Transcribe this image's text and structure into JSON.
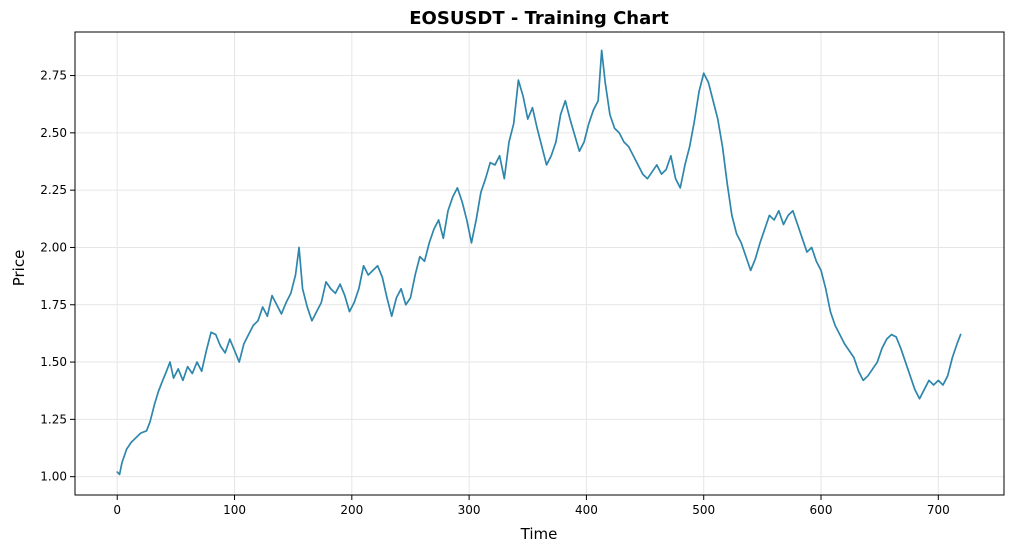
{
  "chart_data": {
    "type": "line",
    "title": "EOSUSDT - Training Chart",
    "xlabel": "Time",
    "ylabel": "Price",
    "xlim": [
      -36,
      756
    ],
    "ylim": [
      0.92,
      2.94
    ],
    "xticks": [
      0,
      100,
      200,
      300,
      400,
      500,
      600,
      700
    ],
    "yticks": [
      1.0,
      1.25,
      1.5,
      1.75,
      2.0,
      2.25,
      2.5,
      2.75
    ],
    "grid": true,
    "legend": "none",
    "line_color": "#2e86ab",
    "series": [
      {
        "points": [
          [
            0,
            1.02
          ],
          [
            2,
            1.01
          ],
          [
            4,
            1.06
          ],
          [
            8,
            1.12
          ],
          [
            12,
            1.15
          ],
          [
            16,
            1.17
          ],
          [
            20,
            1.19
          ],
          [
            25,
            1.2
          ],
          [
            28,
            1.24
          ],
          [
            32,
            1.32
          ],
          [
            35,
            1.37
          ],
          [
            38,
            1.41
          ],
          [
            42,
            1.46
          ],
          [
            45,
            1.5
          ],
          [
            48,
            1.43
          ],
          [
            52,
            1.47
          ],
          [
            56,
            1.42
          ],
          [
            60,
            1.48
          ],
          [
            64,
            1.45
          ],
          [
            68,
            1.5
          ],
          [
            72,
            1.46
          ],
          [
            76,
            1.55
          ],
          [
            80,
            1.63
          ],
          [
            84,
            1.62
          ],
          [
            88,
            1.57
          ],
          [
            92,
            1.54
          ],
          [
            96,
            1.6
          ],
          [
            100,
            1.55
          ],
          [
            104,
            1.5
          ],
          [
            108,
            1.58
          ],
          [
            112,
            1.62
          ],
          [
            116,
            1.66
          ],
          [
            120,
            1.68
          ],
          [
            124,
            1.74
          ],
          [
            128,
            1.7
          ],
          [
            132,
            1.79
          ],
          [
            136,
            1.75
          ],
          [
            140,
            1.71
          ],
          [
            144,
            1.76
          ],
          [
            148,
            1.8
          ],
          [
            152,
            1.88
          ],
          [
            155,
            2.0
          ],
          [
            158,
            1.82
          ],
          [
            162,
            1.74
          ],
          [
            166,
            1.68
          ],
          [
            170,
            1.72
          ],
          [
            174,
            1.76
          ],
          [
            178,
            1.85
          ],
          [
            182,
            1.82
          ],
          [
            186,
            1.8
          ],
          [
            190,
            1.84
          ],
          [
            194,
            1.79
          ],
          [
            198,
            1.72
          ],
          [
            202,
            1.76
          ],
          [
            206,
            1.82
          ],
          [
            210,
            1.92
          ],
          [
            214,
            1.88
          ],
          [
            218,
            1.9
          ],
          [
            222,
            1.92
          ],
          [
            226,
            1.87
          ],
          [
            230,
            1.78
          ],
          [
            234,
            1.7
          ],
          [
            238,
            1.78
          ],
          [
            242,
            1.82
          ],
          [
            246,
            1.75
          ],
          [
            250,
            1.78
          ],
          [
            254,
            1.88
          ],
          [
            258,
            1.96
          ],
          [
            262,
            1.94
          ],
          [
            266,
            2.02
          ],
          [
            270,
            2.08
          ],
          [
            274,
            2.12
          ],
          [
            278,
            2.04
          ],
          [
            282,
            2.16
          ],
          [
            286,
            2.22
          ],
          [
            290,
            2.26
          ],
          [
            294,
            2.2
          ],
          [
            298,
            2.12
          ],
          [
            302,
            2.02
          ],
          [
            306,
            2.12
          ],
          [
            310,
            2.24
          ],
          [
            314,
            2.3
          ],
          [
            318,
            2.37
          ],
          [
            322,
            2.36
          ],
          [
            326,
            2.4
          ],
          [
            330,
            2.3
          ],
          [
            334,
            2.46
          ],
          [
            338,
            2.54
          ],
          [
            342,
            2.73
          ],
          [
            346,
            2.66
          ],
          [
            350,
            2.56
          ],
          [
            354,
            2.61
          ],
          [
            358,
            2.52
          ],
          [
            362,
            2.44
          ],
          [
            366,
            2.36
          ],
          [
            370,
            2.4
          ],
          [
            374,
            2.46
          ],
          [
            378,
            2.58
          ],
          [
            382,
            2.64
          ],
          [
            386,
            2.56
          ],
          [
            390,
            2.49
          ],
          [
            394,
            2.42
          ],
          [
            398,
            2.46
          ],
          [
            402,
            2.54
          ],
          [
            406,
            2.6
          ],
          [
            410,
            2.64
          ],
          [
            413,
            2.86
          ],
          [
            416,
            2.72
          ],
          [
            420,
            2.58
          ],
          [
            424,
            2.52
          ],
          [
            428,
            2.5
          ],
          [
            432,
            2.46
          ],
          [
            436,
            2.44
          ],
          [
            440,
            2.4
          ],
          [
            444,
            2.36
          ],
          [
            448,
            2.32
          ],
          [
            452,
            2.3
          ],
          [
            456,
            2.33
          ],
          [
            460,
            2.36
          ],
          [
            464,
            2.32
          ],
          [
            468,
            2.34
          ],
          [
            472,
            2.4
          ],
          [
            476,
            2.3
          ],
          [
            480,
            2.26
          ],
          [
            484,
            2.36
          ],
          [
            488,
            2.44
          ],
          [
            492,
            2.55
          ],
          [
            496,
            2.68
          ],
          [
            500,
            2.76
          ],
          [
            504,
            2.72
          ],
          [
            508,
            2.64
          ],
          [
            512,
            2.56
          ],
          [
            516,
            2.44
          ],
          [
            520,
            2.28
          ],
          [
            524,
            2.14
          ],
          [
            528,
            2.06
          ],
          [
            532,
            2.02
          ],
          [
            536,
            1.96
          ],
          [
            540,
            1.9
          ],
          [
            544,
            1.95
          ],
          [
            548,
            2.02
          ],
          [
            552,
            2.08
          ],
          [
            556,
            2.14
          ],
          [
            560,
            2.12
          ],
          [
            564,
            2.16
          ],
          [
            568,
            2.1
          ],
          [
            572,
            2.14
          ],
          [
            576,
            2.16
          ],
          [
            580,
            2.1
          ],
          [
            584,
            2.04
          ],
          [
            588,
            1.98
          ],
          [
            592,
            2.0
          ],
          [
            596,
            1.94
          ],
          [
            600,
            1.9
          ],
          [
            604,
            1.82
          ],
          [
            608,
            1.72
          ],
          [
            612,
            1.66
          ],
          [
            616,
            1.62
          ],
          [
            620,
            1.58
          ],
          [
            624,
            1.55
          ],
          [
            628,
            1.52
          ],
          [
            632,
            1.46
          ],
          [
            636,
            1.42
          ],
          [
            640,
            1.44
          ],
          [
            644,
            1.47
          ],
          [
            648,
            1.5
          ],
          [
            652,
            1.56
          ],
          [
            656,
            1.6
          ],
          [
            660,
            1.62
          ],
          [
            664,
            1.61
          ],
          [
            668,
            1.56
          ],
          [
            672,
            1.5
          ],
          [
            676,
            1.44
          ],
          [
            680,
            1.38
          ],
          [
            684,
            1.34
          ],
          [
            688,
            1.38
          ],
          [
            692,
            1.42
          ],
          [
            696,
            1.4
          ],
          [
            700,
            1.42
          ],
          [
            704,
            1.4
          ],
          [
            708,
            1.44
          ],
          [
            712,
            1.52
          ],
          [
            716,
            1.58
          ],
          [
            719,
            1.62
          ]
        ]
      }
    ]
  }
}
